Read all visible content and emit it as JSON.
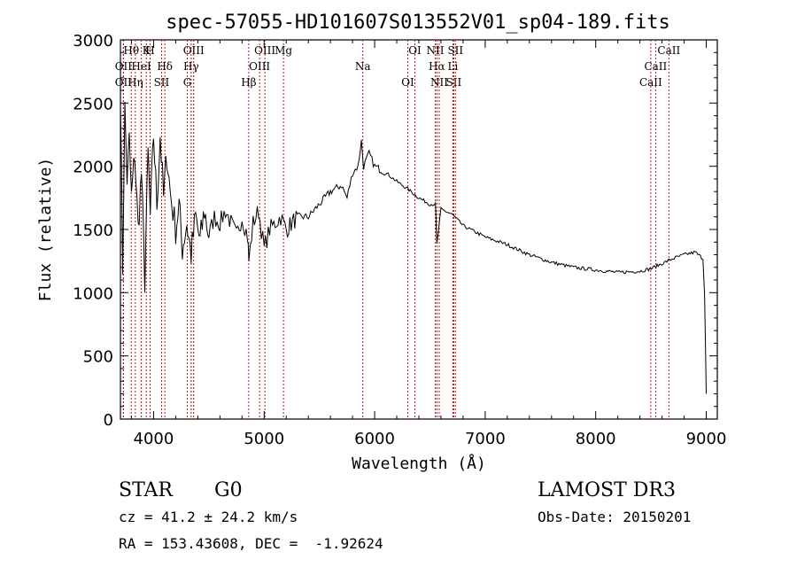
{
  "chart_data": {
    "type": "line",
    "title": "spec-57055-HD101607S013552V01_sp04-189.fits",
    "xlabel": "Wavelength (Å)",
    "ylabel": "Flux (relative)",
    "xlim": [
      3700,
      9100
    ],
    "ylim": [
      0,
      3000
    ],
    "x_ticks": [
      4000,
      5000,
      6000,
      7000,
      8000,
      9000
    ],
    "y_ticks": [
      0,
      500,
      1000,
      1500,
      2000,
      2500,
      3000
    ],
    "grid": false,
    "series": [
      {
        "name": "spectrum",
        "x": [
          3700,
          3720,
          3740,
          3760,
          3780,
          3800,
          3830,
          3860,
          3890,
          3920,
          3950,
          3970,
          4000,
          4030,
          4060,
          4090,
          4120,
          4150,
          4200,
          4230,
          4260,
          4300,
          4340,
          4380,
          4420,
          4460,
          4500,
          4550,
          4600,
          4650,
          4700,
          4750,
          4800,
          4850,
          4862,
          4900,
          4950,
          5000,
          5050,
          5100,
          5150,
          5200,
          5300,
          5400,
          5500,
          5600,
          5700,
          5750,
          5800,
          5850,
          5880,
          5900,
          5950,
          6000,
          6100,
          6200,
          6300,
          6400,
          6500,
          6550,
          6563,
          6600,
          6700,
          6800,
          7000,
          7200,
          7400,
          7600,
          7800,
          8000,
          8200,
          8400,
          8500,
          8600,
          8700,
          8800,
          8900,
          8970,
          8985,
          9000
        ],
        "y": [
          2600,
          1200,
          2450,
          1900,
          2200,
          1750,
          2100,
          1500,
          1950,
          1100,
          2100,
          1600,
          2250,
          1700,
          2250,
          1750,
          2100,
          1800,
          1500,
          1700,
          1350,
          1550,
          1300,
          1600,
          1400,
          1650,
          1450,
          1600,
          1550,
          1650,
          1550,
          1450,
          1600,
          1450,
          1250,
          1550,
          1650,
          1350,
          1500,
          1550,
          1600,
          1500,
          1600,
          1600,
          1700,
          1800,
          1850,
          1750,
          1950,
          2000,
          2200,
          2000,
          2100,
          2000,
          1950,
          1880,
          1820,
          1750,
          1700,
          1700,
          1380,
          1660,
          1620,
          1530,
          1440,
          1380,
          1300,
          1240,
          1200,
          1180,
          1160,
          1170,
          1190,
          1230,
          1270,
          1300,
          1320,
          1270,
          1000,
          200
        ]
      }
    ],
    "lines": [
      {
        "name": "Hθ",
        "x": 3798
      },
      {
        "name": "OII",
        "x": 3727
      },
      {
        "name": "OII",
        "x": 3727
      },
      {
        "name": "K",
        "x": 3934
      },
      {
        "name": "HeI",
        "x": 3889
      },
      {
        "name": "Hη",
        "x": 3835
      },
      {
        "name": "H",
        "x": 3968
      },
      {
        "name": "Hδ",
        "x": 4102
      },
      {
        "name": "SII",
        "x": 4072
      },
      {
        "name": "OIII",
        "x": 4363
      },
      {
        "name": "Hγ",
        "x": 4340
      },
      {
        "name": "G",
        "x": 4305
      },
      {
        "name": "OIII",
        "x": 5007
      },
      {
        "name": "OIII",
        "x": 4959
      },
      {
        "name": "Hβ",
        "x": 4861
      },
      {
        "name": "Mg",
        "x": 5175
      },
      {
        "name": "Na",
        "x": 5893
      },
      {
        "name": "OI",
        "x": 6300
      },
      {
        "name": "OI",
        "x": 6364
      },
      {
        "name": "Hα",
        "x": 6563
      },
      {
        "name": "SII",
        "x": 6716
      },
      {
        "name": "NII",
        "x": 6548
      },
      {
        "name": "Li",
        "x": 6708
      },
      {
        "name": "NII",
        "x": 6584
      },
      {
        "name": "SII",
        "x": 6731
      },
      {
        "name": "CaII",
        "x": 8542
      },
      {
        "name": "CaII",
        "x": 8498
      },
      {
        "name": "CaII",
        "x": 8662
      }
    ]
  },
  "info": {
    "object_type": "STAR",
    "subclass": "G0",
    "survey": "LAMOST DR3",
    "cz": "cz = 41.2 ± 24.2 km/s",
    "obs_date": "Obs-Date: 20150201",
    "coords": "RA = 153.43608, DEC =  -1.92624"
  }
}
